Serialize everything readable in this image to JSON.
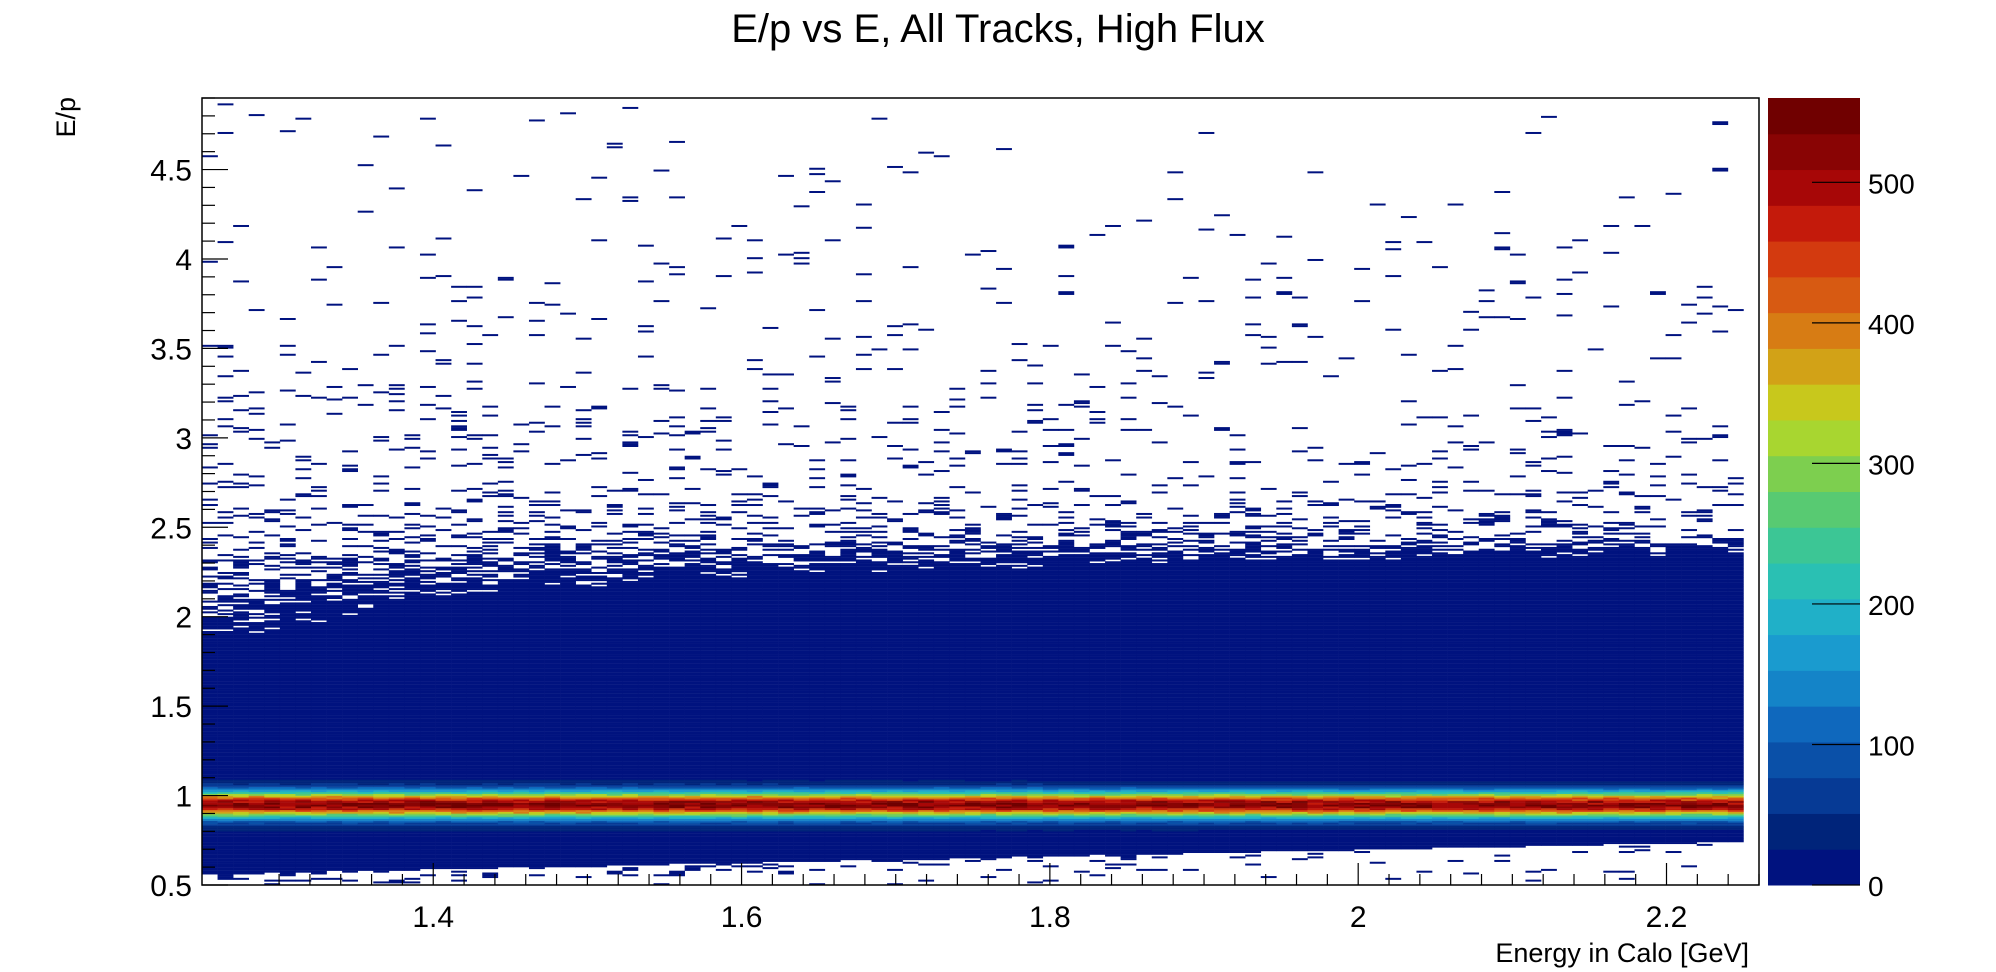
{
  "chart_data": {
    "type": "heatmap",
    "title": "E/p vs E, All Tracks, High Flux",
    "xlabel": "Energy in Calo [GeV]",
    "ylabel": "E/p",
    "xlim": [
      1.25,
      2.26
    ],
    "ylim": [
      0.5,
      4.9
    ],
    "x_ticks": [
      1.4,
      1.6,
      1.8,
      2.0,
      2.2
    ],
    "x_tick_labels": [
      "1.4",
      "1.6",
      "1.8",
      "2",
      "2.2"
    ],
    "y_ticks": [
      0.5,
      1.0,
      1.5,
      2.0,
      2.5,
      3.0,
      3.5,
      4.0,
      4.5
    ],
    "y_tick_labels": [
      "0.5",
      "1",
      "1.5",
      "2",
      "2.5",
      "3",
      "3.5",
      "4",
      "4.5"
    ],
    "z_range": [
      0,
      560
    ],
    "z_ticks": [
      0,
      100,
      200,
      300,
      400,
      500
    ],
    "z_tick_labels": [
      "0",
      "100",
      "200",
      "300",
      "400",
      "500"
    ],
    "bins": {
      "nx": 100,
      "ny": 440
    },
    "palette": [
      "#00127f",
      "#00247a",
      "#063a95",
      "#0a50a8",
      "#0f68bd",
      "#1484c8",
      "#1a9bcf",
      "#20b0c8",
      "#2ac0b3",
      "#3cc695",
      "#58ca72",
      "#7dcf4f",
      "#a8d630",
      "#c8c81c",
      "#d2a217",
      "#d77c14",
      "#d75a12",
      "#d33a0f",
      "#c41a0b",
      "#a70707",
      "#890404",
      "#700000"
    ],
    "band": {
      "description": "Dense ridge near E/p approx 0.95 across all energies",
      "peak_y": 0.95,
      "peak_counts": 550,
      "sigma_y": 0.05
    },
    "legend": "color scale right",
    "grid": false
  }
}
